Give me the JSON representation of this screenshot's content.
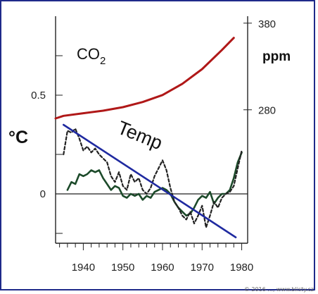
{
  "chart_data": {
    "type": "line",
    "x_ticks": [
      1940,
      1950,
      1960,
      1970,
      1980
    ],
    "y_left": {
      "unit": "°C",
      "ticks": [
        0,
        0.5
      ],
      "range": [
        -0.25,
        0.9
      ]
    },
    "y_right": {
      "unit": "ppm",
      "ticks": [
        280,
        380
      ],
      "range": [
        126,
        388
      ]
    },
    "x_range": [
      1933,
      1981.5
    ],
    "series": [
      {
        "name": "CO2",
        "axis": "right",
        "color": "#b01818",
        "style": "solid",
        "x": [
          1930,
          1935,
          1940,
          1945,
          1950,
          1955,
          1960,
          1965,
          1970,
          1975,
          1978
        ],
        "y": [
          270,
          273,
          276,
          279,
          283,
          289,
          297,
          310,
          327,
          349,
          363
        ]
      },
      {
        "name": "",
        "axis": "left",
        "color": "#1c4a2a",
        "style": "solid",
        "x": [
          1936,
          1937,
          1938,
          1939,
          1940,
          1941,
          1942,
          1943,
          1944,
          1945,
          1946,
          1947,
          1948,
          1949,
          1950,
          1951,
          1952,
          1953,
          1954,
          1955,
          1956,
          1957,
          1958,
          1959,
          1960,
          1961,
          1962,
          1963,
          1964,
          1965,
          1966,
          1967,
          1968,
          1969,
          1970,
          1971,
          1972,
          1973,
          1974,
          1975,
          1976,
          1977,
          1978,
          1979,
          1980
        ],
        "y": [
          0.02,
          0.06,
          0.05,
          0.1,
          0.09,
          0.1,
          0.12,
          0.11,
          0.12,
          0.08,
          0.05,
          0.02,
          0.04,
          0.03,
          -0.01,
          -0.02,
          0.0,
          -0.01,
          0.0,
          -0.03,
          -0.01,
          -0.02,
          0.01,
          0.02,
          0.03,
          0.02,
          0.0,
          -0.04,
          -0.07,
          -0.09,
          -0.11,
          -0.1,
          -0.07,
          -0.03,
          -0.01,
          -0.02,
          0.01,
          -0.05,
          -0.02,
          0.0,
          0.0,
          0.02,
          0.08,
          0.16,
          0.21
        ]
      },
      {
        "name": "",
        "axis": "left",
        "color": "#222222",
        "style": "dashed",
        "x": [
          1935,
          1936,
          1937,
          1938,
          1939,
          1940,
          1941,
          1942,
          1943,
          1944,
          1945,
          1946,
          1947,
          1948,
          1949,
          1950,
          1951,
          1952,
          1953,
          1954,
          1955,
          1956,
          1957,
          1958,
          1959,
          1960,
          1961,
          1962,
          1963,
          1964,
          1965,
          1966,
          1967,
          1968,
          1969,
          1970,
          1971,
          1972,
          1973,
          1974,
          1975,
          1976,
          1977,
          1978,
          1979,
          1980
        ],
        "y": [
          0.2,
          0.32,
          0.31,
          0.33,
          0.28,
          0.22,
          0.24,
          0.21,
          0.23,
          0.2,
          0.18,
          0.16,
          0.09,
          0.06,
          0.11,
          0.04,
          0.02,
          0.1,
          0.06,
          0.08,
          0.02,
          0.0,
          0.03,
          0.09,
          0.13,
          0.17,
          0.12,
          0.03,
          -0.04,
          -0.07,
          -0.11,
          -0.13,
          -0.09,
          -0.15,
          -0.11,
          -0.06,
          -0.17,
          -0.11,
          -0.04,
          -0.07,
          -0.02,
          0.0,
          0.01,
          0.04,
          0.13,
          0.22
        ]
      },
      {
        "name": "",
        "axis": "left",
        "color": "#1f2aa0",
        "style": "solid",
        "x": [
          1935,
          1978.5
        ],
        "y": [
          0.35,
          -0.22
        ]
      }
    ],
    "annotations": [
      "CO2",
      "Temp"
    ],
    "grid": false,
    "zero_line": true
  },
  "labels": {
    "co2_main": "CO",
    "co2_sub": "2",
    "temp": "Temp",
    "ppm": "ppm",
    "celsius": "°C",
    "credit": "© 2016 ..., www.blisty.cz"
  }
}
